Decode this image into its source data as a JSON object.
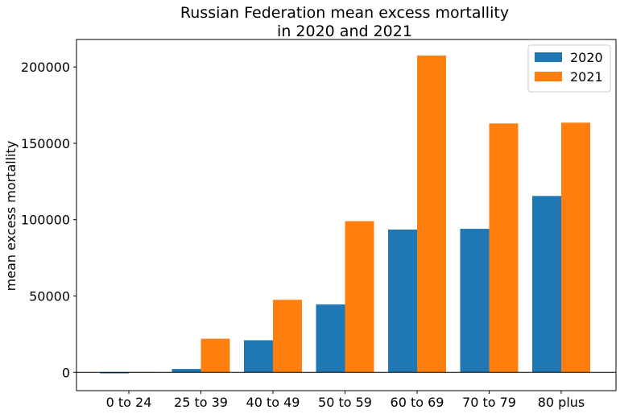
{
  "chart_data": {
    "type": "bar",
    "title": [
      "Russian Federation mean excess mortallity",
      "in 2020 and 2021"
    ],
    "xlabel": "",
    "ylabel": "mean excess mortallity",
    "categories": [
      "0 to 24",
      "25 to 39",
      "40 to 49",
      "50 to 59",
      "60 to 69",
      "70 to 79",
      "80 plus"
    ],
    "series": [
      {
        "name": "2020",
        "color": "#1f77b4",
        "values": [
          -700,
          2200,
          21000,
          44500,
          93500,
          94000,
          115500
        ]
      },
      {
        "name": "2021",
        "color": "#ff7f0e",
        "values": [
          -200,
          22000,
          47500,
          99000,
          207500,
          163000,
          163500
        ]
      }
    ],
    "ylim": [
      -12000,
      218000
    ],
    "yticks": [
      0,
      50000,
      100000,
      150000,
      200000
    ],
    "ytick_labels": [
      "0",
      "50000",
      "100000",
      "150000",
      "200000"
    ],
    "zero_line": true,
    "grid": false,
    "legend": "top-right"
  }
}
